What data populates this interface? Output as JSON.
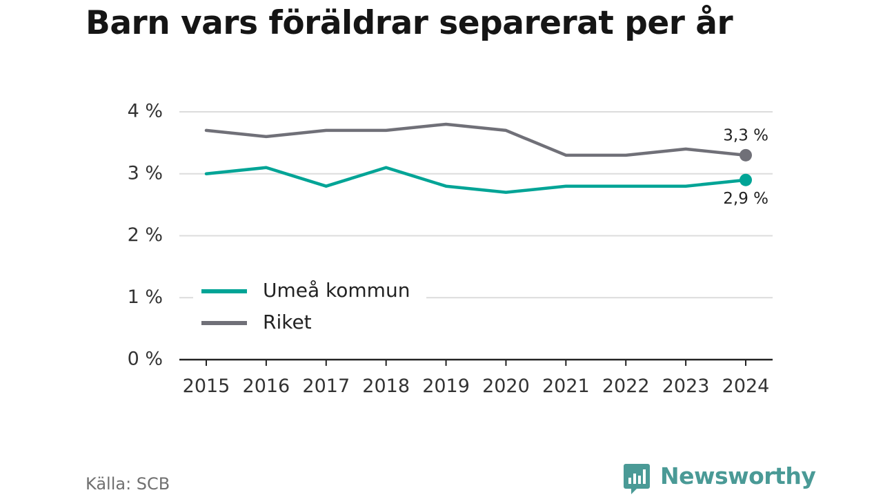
{
  "colors": {
    "umea": "#00a496",
    "riket": "#707078",
    "grid": "#dcdcdc",
    "axis": "#222222",
    "brand": "#4a9a96"
  },
  "source": "Källa: SCB",
  "brand": {
    "name": "Newsworthy",
    "icon": "bar-chart-speech-bubble-icon"
  },
  "chart_data": {
    "type": "line",
    "title": "Barn vars föräldrar separerat per år",
    "xlabel": "",
    "ylabel": "",
    "x": [
      "2015",
      "2016",
      "2017",
      "2018",
      "2019",
      "2020",
      "2021",
      "2022",
      "2023",
      "2024"
    ],
    "ylim": [
      0,
      4
    ],
    "yticks": [
      0,
      1,
      2,
      3,
      4
    ],
    "ytick_labels": [
      "0 %",
      "1 %",
      "2 %",
      "3 %",
      "4 %"
    ],
    "grid": true,
    "legend_position": "bottom-left",
    "series": [
      {
        "name": "Umeå kommun",
        "color": "#00a496",
        "values": [
          3.0,
          3.1,
          2.8,
          3.1,
          2.8,
          2.7,
          2.8,
          2.8,
          2.8,
          2.9
        ],
        "end_label": "2,9 %"
      },
      {
        "name": "Riket",
        "color": "#707078",
        "values": [
          3.7,
          3.6,
          3.7,
          3.7,
          3.8,
          3.7,
          3.3,
          3.3,
          3.4,
          3.3
        ],
        "end_label": "3,3 %"
      }
    ]
  }
}
